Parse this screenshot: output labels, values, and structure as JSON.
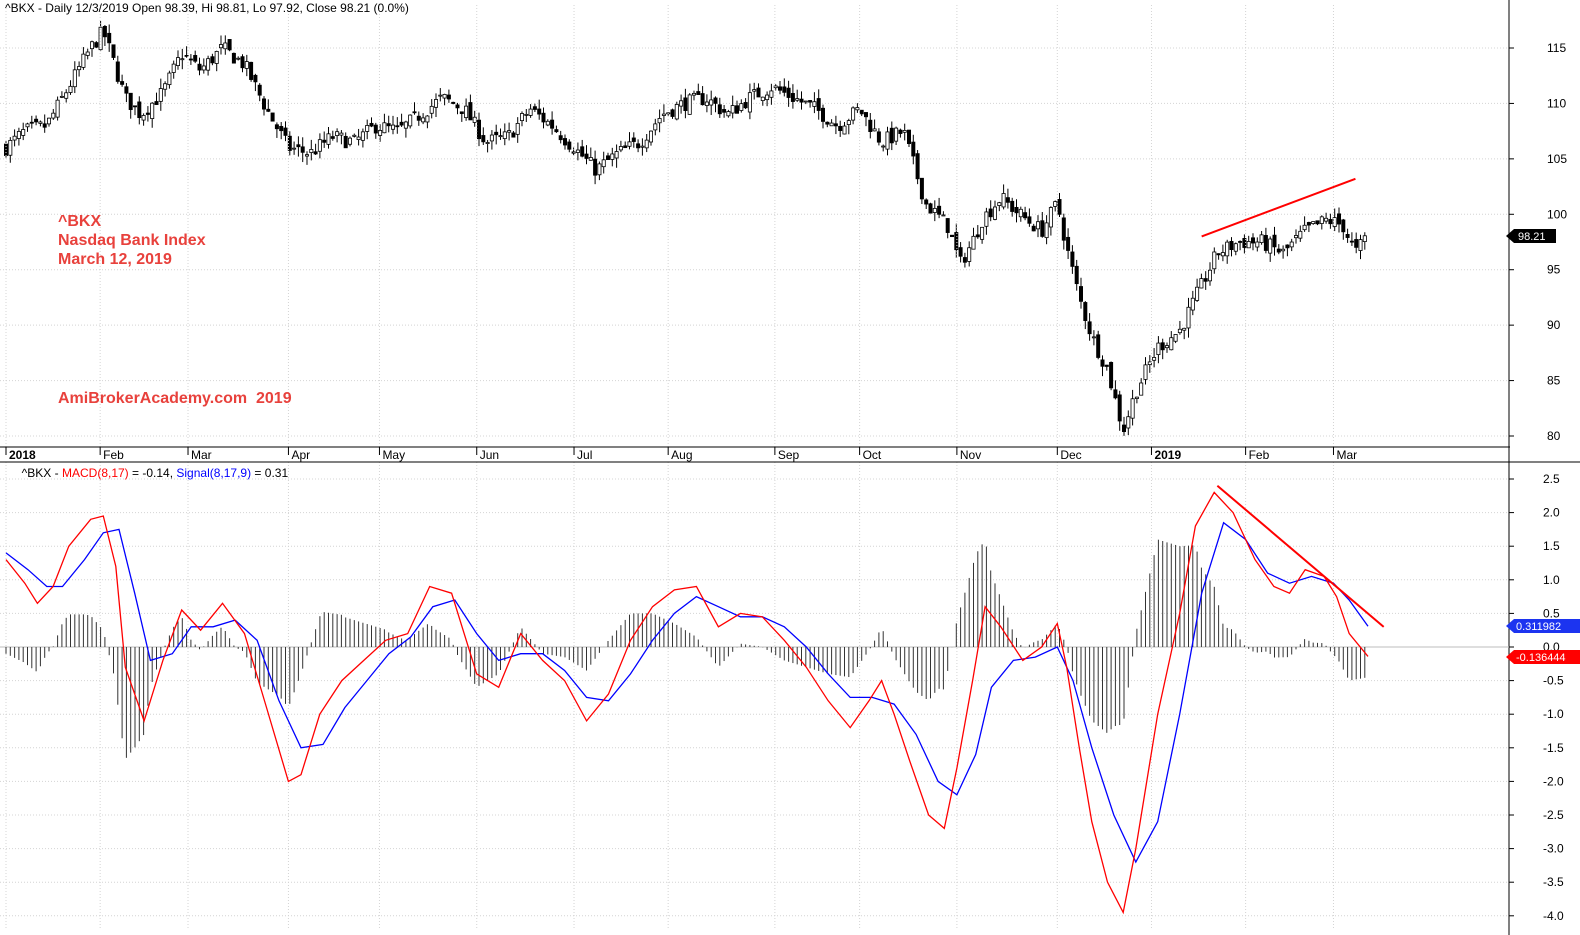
{
  "colors": {
    "background": "#ffffff",
    "candle": "#000000",
    "macd": "#ff0000",
    "signal": "#0000ff",
    "annotation": "#e8413c",
    "trendline": "#ff0000",
    "grid": "#d4d4d4"
  },
  "price_panel": {
    "header": "^BKX - Daily 12/3/2019 Open 98.39, Hi 98.81, Lo 97.92, Close 98.21 (0.0%)",
    "last_price_label": "98.21",
    "annotation_lines": [
      "^BKX",
      "Nasdaq Bank Index",
      "March 12, 2019"
    ],
    "watermark": "AmiBrokerAcademy.com  2019"
  },
  "macd_panel": {
    "header_prefix": "^BKX - ",
    "macd_label": "MACD(8,17)",
    "macd_value": " = -0.14, ",
    "signal_label": "Signal(8,17,9)",
    "signal_value": " = 0.31",
    "signal_last_label": "0.311982",
    "macd_last_label": "-0.136444"
  },
  "chart_data": [
    {
      "type": "candlestick",
      "title": "^BKX",
      "ylim": [
        79,
        118
      ],
      "yticks": [
        80,
        85,
        90,
        95,
        100,
        105,
        110,
        115
      ],
      "x_labels": [
        "2018",
        "Feb",
        "Mar",
        "Apr",
        "May",
        "Jun",
        "Jul",
        "Aug",
        "Sep",
        "Oct",
        "Nov",
        "Dec",
        "2019",
        "Feb",
        "Mar"
      ],
      "x_label_bold": [
        "2018",
        "2019"
      ],
      "close_path": [
        [
          "2018-01-02",
          106.0
        ],
        [
          "2018-01-08",
          107.5
        ],
        [
          "2018-01-15",
          108.0
        ],
        [
          "2018-01-22",
          111.5
        ],
        [
          "2018-01-29",
          115.0
        ],
        [
          "2018-02-02",
          116.5
        ],
        [
          "2018-02-05",
          114.0
        ],
        [
          "2018-02-09",
          110.5
        ],
        [
          "2018-02-14",
          109.0
        ],
        [
          "2018-02-21",
          111.0
        ],
        [
          "2018-02-27",
          114.5
        ],
        [
          "2018-03-05",
          113.0
        ],
        [
          "2018-03-12",
          115.0
        ],
        [
          "2018-03-19",
          113.5
        ],
        [
          "2018-03-26",
          109.5
        ],
        [
          "2018-04-02",
          106.0
        ],
        [
          "2018-04-09",
          105.5
        ],
        [
          "2018-04-16",
          107.0
        ],
        [
          "2018-04-23",
          106.5
        ],
        [
          "2018-04-30",
          108.0
        ],
        [
          "2018-05-07",
          107.5
        ],
        [
          "2018-05-14",
          109.0
        ],
        [
          "2018-05-21",
          110.5
        ],
        [
          "2018-05-28",
          109.5
        ],
        [
          "2018-06-04",
          106.5
        ],
        [
          "2018-06-11",
          107.0
        ],
        [
          "2018-06-18",
          109.5
        ],
        [
          "2018-06-25",
          108.0
        ],
        [
          "2018-07-02",
          106.0
        ],
        [
          "2018-07-09",
          104.0
        ],
        [
          "2018-07-16",
          105.5
        ],
        [
          "2018-07-23",
          106.5
        ],
        [
          "2018-07-30",
          109.0
        ],
        [
          "2018-08-06",
          110.0
        ],
        [
          "2018-08-13",
          110.5
        ],
        [
          "2018-08-20",
          109.0
        ],
        [
          "2018-08-27",
          110.5
        ],
        [
          "2018-09-03",
          111.5
        ],
        [
          "2018-09-10",
          110.5
        ],
        [
          "2018-09-17",
          109.5
        ],
        [
          "2018-09-24",
          108.0
        ],
        [
          "2018-10-01",
          109.5
        ],
        [
          "2018-10-08",
          106.5
        ],
        [
          "2018-10-15",
          107.5
        ],
        [
          "2018-10-22",
          101.0
        ],
        [
          "2018-10-29",
          99.0
        ],
        [
          "2018-11-02",
          95.5
        ],
        [
          "2018-11-06",
          97.5
        ],
        [
          "2018-11-09",
          99.5
        ],
        [
          "2018-11-15",
          101.5
        ],
        [
          "2018-11-21",
          100.0
        ],
        [
          "2018-11-28",
          98.5
        ],
        [
          "2018-12-03",
          101.0
        ],
        [
          "2018-12-06",
          97.0
        ],
        [
          "2018-12-10",
          92.5
        ],
        [
          "2018-12-14",
          89.0
        ],
        [
          "2018-12-19",
          86.0
        ],
        [
          "2018-12-24",
          80.5
        ],
        [
          "2018-12-28",
          84.0
        ],
        [
          "2019-01-04",
          88.0
        ],
        [
          "2019-01-11",
          89.5
        ],
        [
          "2019-01-17",
          93.0
        ],
        [
          "2019-01-23",
          96.5
        ],
        [
          "2019-01-30",
          97.5
        ],
        [
          "2019-02-06",
          97.5
        ],
        [
          "2019-02-13",
          96.5
        ],
        [
          "2019-02-20",
          98.5
        ],
        [
          "2019-02-27",
          99.5
        ],
        [
          "2019-03-04",
          99.0
        ],
        [
          "2019-03-08",
          96.5
        ],
        [
          "2019-03-12",
          98.2
        ]
      ],
      "trendline": [
        [
          "2019-01-18",
          98.0
        ],
        [
          "2019-03-08",
          103.2
        ]
      ],
      "last_close": 98.21
    },
    {
      "type": "line",
      "title": "MACD(8,17) / Signal(8,17,9)",
      "ylim": [
        -4.0,
        2.6
      ],
      "yticks": [
        2.5,
        2.0,
        1.5,
        1.0,
        0.5,
        0.0,
        -0.5,
        -1.0,
        -1.5,
        -2.0,
        -2.5,
        -3.0,
        -3.5,
        -4.0
      ],
      "series": [
        {
          "name": "MACD(8,17)",
          "color": "#ff0000",
          "points": [
            [
              "2018-01-02",
              1.3
            ],
            [
              "2018-01-08",
              0.95
            ],
            [
              "2018-01-12",
              0.65
            ],
            [
              "2018-01-17",
              0.9
            ],
            [
              "2018-01-22",
              1.5
            ],
            [
              "2018-01-29",
              1.9
            ],
            [
              "2018-02-02",
              1.95
            ],
            [
              "2018-02-06",
              1.2
            ],
            [
              "2018-02-09",
              -0.3
            ],
            [
              "2018-02-15",
              -1.1
            ],
            [
              "2018-02-21",
              -0.2
            ],
            [
              "2018-02-27",
              0.55
            ],
            [
              "2018-03-05",
              0.25
            ],
            [
              "2018-03-12",
              0.65
            ],
            [
              "2018-03-19",
              0.2
            ],
            [
              "2018-03-26",
              -0.9
            ],
            [
              "2018-04-02",
              -2.0
            ],
            [
              "2018-04-06",
              -1.9
            ],
            [
              "2018-04-12",
              -1.0
            ],
            [
              "2018-04-19",
              -0.5
            ],
            [
              "2018-04-26",
              -0.2
            ],
            [
              "2018-05-03",
              0.1
            ],
            [
              "2018-05-10",
              0.2
            ],
            [
              "2018-05-17",
              0.9
            ],
            [
              "2018-05-24",
              0.8
            ],
            [
              "2018-06-01",
              -0.4
            ],
            [
              "2018-06-08",
              -0.6
            ],
            [
              "2018-06-15",
              0.2
            ],
            [
              "2018-06-22",
              -0.2
            ],
            [
              "2018-06-29",
              -0.5
            ],
            [
              "2018-07-06",
              -1.1
            ],
            [
              "2018-07-13",
              -0.7
            ],
            [
              "2018-07-20",
              0.1
            ],
            [
              "2018-07-27",
              0.6
            ],
            [
              "2018-08-03",
              0.85
            ],
            [
              "2018-08-10",
              0.9
            ],
            [
              "2018-08-17",
              0.3
            ],
            [
              "2018-08-24",
              0.5
            ],
            [
              "2018-08-31",
              0.45
            ],
            [
              "2018-09-07",
              0.1
            ],
            [
              "2018-09-14",
              -0.3
            ],
            [
              "2018-09-21",
              -0.8
            ],
            [
              "2018-09-28",
              -1.2
            ],
            [
              "2018-10-04",
              -0.8
            ],
            [
              "2018-10-08",
              -0.5
            ],
            [
              "2018-10-12",
              -1.0
            ],
            [
              "2018-10-17",
              -1.7
            ],
            [
              "2018-10-23",
              -2.5
            ],
            [
              "2018-10-28",
              -2.7
            ],
            [
              "2018-11-01",
              -1.8
            ],
            [
              "2018-11-06",
              -0.5
            ],
            [
              "2018-11-10",
              0.6
            ],
            [
              "2018-11-15",
              0.3
            ],
            [
              "2018-11-22",
              -0.2
            ],
            [
              "2018-11-28",
              0.0
            ],
            [
              "2018-12-03",
              0.35
            ],
            [
              "2018-12-06",
              -0.3
            ],
            [
              "2018-12-10",
              -1.5
            ],
            [
              "2018-12-14",
              -2.6
            ],
            [
              "2018-12-19",
              -3.5
            ],
            [
              "2018-12-24",
              -3.95
            ],
            [
              "2018-12-28",
              -3.0
            ],
            [
              "2019-01-04",
              -1.0
            ],
            [
              "2019-01-11",
              0.5
            ],
            [
              "2019-01-16",
              1.8
            ],
            [
              "2019-01-22",
              2.3
            ],
            [
              "2019-01-28",
              2.0
            ],
            [
              "2019-02-04",
              1.3
            ],
            [
              "2019-02-10",
              0.9
            ],
            [
              "2019-02-15",
              0.8
            ],
            [
              "2019-02-20",
              1.15
            ],
            [
              "2019-02-26",
              1.05
            ],
            [
              "2019-03-02",
              0.75
            ],
            [
              "2019-03-06",
              0.2
            ],
            [
              "2019-03-12",
              -0.14
            ]
          ]
        },
        {
          "name": "Signal(8,17,9)",
          "color": "#0000ff",
          "points": [
            [
              "2018-01-02",
              1.4
            ],
            [
              "2018-01-09",
              1.15
            ],
            [
              "2018-01-15",
              0.9
            ],
            [
              "2018-01-20",
              0.9
            ],
            [
              "2018-01-27",
              1.3
            ],
            [
              "2018-02-02",
              1.7
            ],
            [
              "2018-02-07",
              1.75
            ],
            [
              "2018-02-12",
              0.8
            ],
            [
              "2018-02-17",
              -0.2
            ],
            [
              "2018-02-24",
              -0.1
            ],
            [
              "2018-03-02",
              0.3
            ],
            [
              "2018-03-09",
              0.3
            ],
            [
              "2018-03-16",
              0.4
            ],
            [
              "2018-03-23",
              0.1
            ],
            [
              "2018-03-30",
              -0.8
            ],
            [
              "2018-04-06",
              -1.5
            ],
            [
              "2018-04-13",
              -1.45
            ],
            [
              "2018-04-20",
              -0.9
            ],
            [
              "2018-04-27",
              -0.5
            ],
            [
              "2018-05-04",
              -0.1
            ],
            [
              "2018-05-11",
              0.15
            ],
            [
              "2018-05-18",
              0.6
            ],
            [
              "2018-05-25",
              0.7
            ],
            [
              "2018-06-01",
              0.2
            ],
            [
              "2018-06-08",
              -0.2
            ],
            [
              "2018-06-15",
              -0.1
            ],
            [
              "2018-06-22",
              -0.1
            ],
            [
              "2018-06-29",
              -0.35
            ],
            [
              "2018-07-06",
              -0.75
            ],
            [
              "2018-07-13",
              -0.8
            ],
            [
              "2018-07-20",
              -0.4
            ],
            [
              "2018-07-27",
              0.1
            ],
            [
              "2018-08-03",
              0.5
            ],
            [
              "2018-08-10",
              0.75
            ],
            [
              "2018-08-17",
              0.6
            ],
            [
              "2018-08-24",
              0.45
            ],
            [
              "2018-08-31",
              0.45
            ],
            [
              "2018-09-07",
              0.3
            ],
            [
              "2018-09-14",
              0.0
            ],
            [
              "2018-09-21",
              -0.4
            ],
            [
              "2018-09-28",
              -0.75
            ],
            [
              "2018-10-05",
              -0.75
            ],
            [
              "2018-10-12",
              -0.85
            ],
            [
              "2018-10-19",
              -1.3
            ],
            [
              "2018-10-26",
              -2.0
            ],
            [
              "2018-11-01",
              -2.2
            ],
            [
              "2018-11-07",
              -1.6
            ],
            [
              "2018-11-12",
              -0.6
            ],
            [
              "2018-11-19",
              -0.2
            ],
            [
              "2018-11-26",
              -0.15
            ],
            [
              "2018-12-03",
              0.0
            ],
            [
              "2018-12-08",
              -0.5
            ],
            [
              "2018-12-14",
              -1.5
            ],
            [
              "2018-12-21",
              -2.5
            ],
            [
              "2018-12-28",
              -3.2
            ],
            [
              "2019-01-04",
              -2.6
            ],
            [
              "2019-01-11",
              -1.0
            ],
            [
              "2019-01-18",
              0.8
            ],
            [
              "2019-01-25",
              1.85
            ],
            [
              "2019-02-01",
              1.6
            ],
            [
              "2019-02-08",
              1.1
            ],
            [
              "2019-02-15",
              0.95
            ],
            [
              "2019-02-22",
              1.05
            ],
            [
              "2019-03-01",
              0.95
            ],
            [
              "2019-03-06",
              0.7
            ],
            [
              "2019-03-12",
              0.31
            ]
          ]
        }
      ],
      "trendline": [
        [
          "2019-01-23",
          2.4
        ],
        [
          "2019-03-17",
          0.3
        ]
      ],
      "last_macd": -0.14,
      "last_signal": 0.31
    }
  ]
}
